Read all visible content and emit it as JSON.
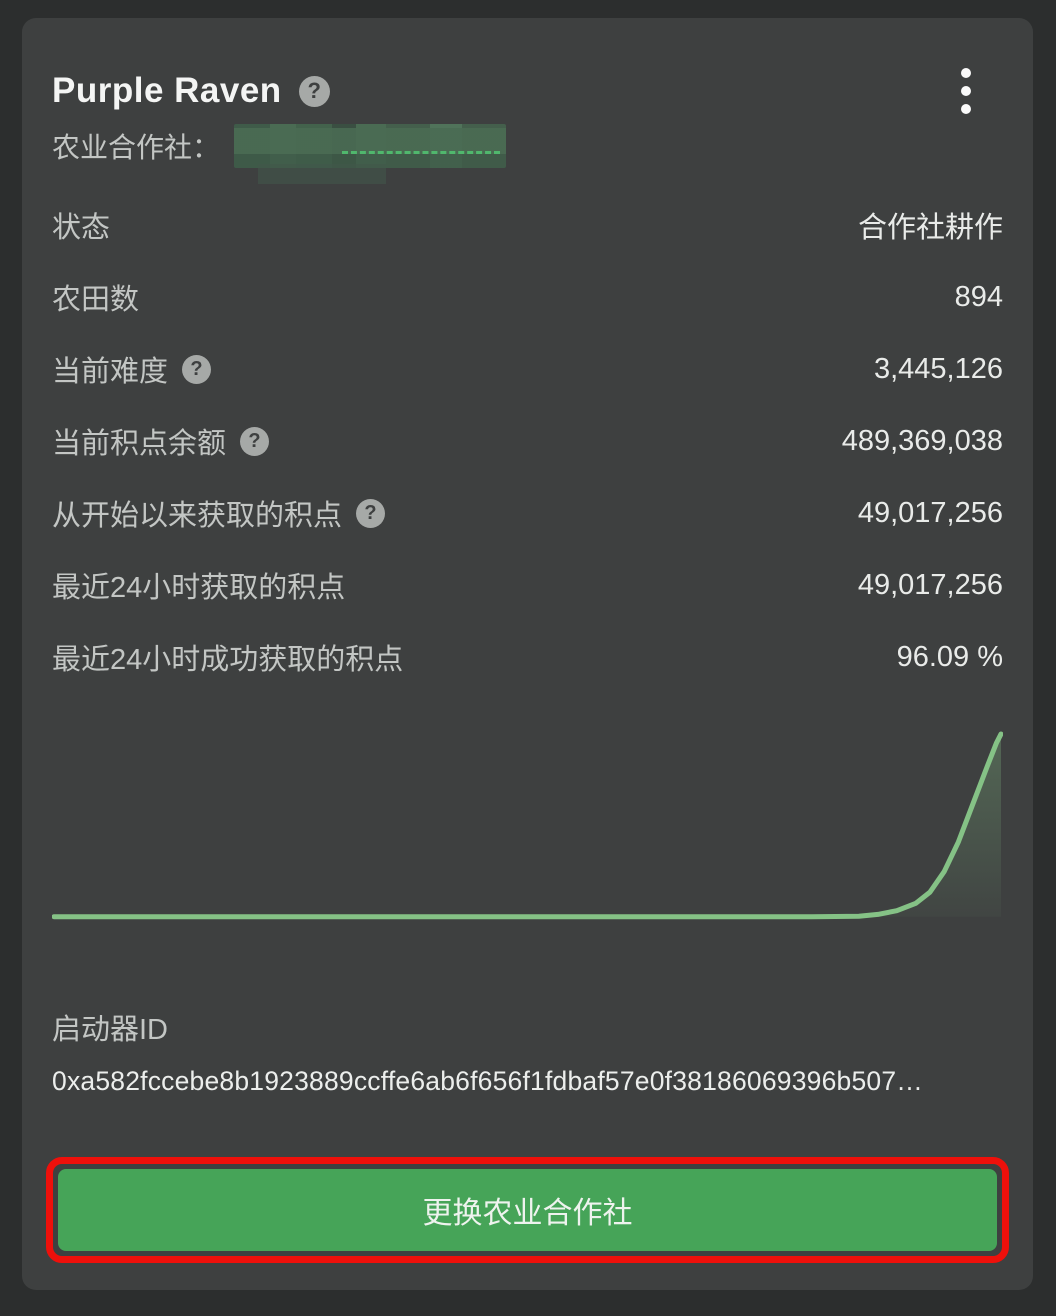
{
  "card": {
    "title": "Purple Raven",
    "help_glyph": "?",
    "pool_label": "农业合作社：",
    "pool_value_redacted": "",
    "rows": [
      {
        "label": "状态",
        "value": "合作社耕作",
        "has_help": false
      },
      {
        "label": "农田数",
        "value": "894",
        "has_help": false
      },
      {
        "label": "当前难度",
        "value": "3,445,126",
        "has_help": true
      },
      {
        "label": "当前积点余额",
        "value": "489,369,038",
        "has_help": true
      },
      {
        "label": "从开始以来获取的积点",
        "value": "49,017,256",
        "has_help": true
      },
      {
        "label": "最近24小时获取的积点",
        "value": "49,017,256",
        "has_help": false
      },
      {
        "label": "最近24小时成功获取的积点",
        "value": "96.09 %",
        "has_help": false
      }
    ],
    "launcher_id_label": "启动器ID",
    "launcher_id_value": "0xa582fccebe8b1923889ccffe6ab6f656f1fdbaf57e0f38186069396b507…",
    "button_label": "更换农业合作社"
  },
  "colors": {
    "page_bg": "#2c2e2e",
    "card_bg": "#3e4040",
    "label_text": "#c3c6c4",
    "value_text": "#e9ebe9",
    "chart_line": "#85c286",
    "chart_fill": "#85c286",
    "button_green": "#46a458",
    "annotation_red": "#ee100b"
  },
  "chart_data": {
    "type": "area",
    "title": "",
    "xlabel": "",
    "ylabel": "",
    "axes_visible": false,
    "legend": "none",
    "description": "unlabeled sparkline: flat near zero then sharp exponential rise at far right",
    "x": [
      0,
      10,
      20,
      30,
      40,
      50,
      60,
      70,
      80,
      85,
      87,
      89,
      91,
      92.5,
      94,
      95.5,
      97,
      98.5,
      99.5,
      100
    ],
    "values": [
      0.018,
      0.018,
      0.018,
      0.018,
      0.018,
      0.018,
      0.018,
      0.018,
      0.018,
      0.02,
      0.03,
      0.05,
      0.09,
      0.15,
      0.26,
      0.42,
      0.62,
      0.82,
      0.95,
      1.0
    ],
    "xlim": [
      0,
      100
    ],
    "ylim": [
      0,
      1
    ]
  }
}
